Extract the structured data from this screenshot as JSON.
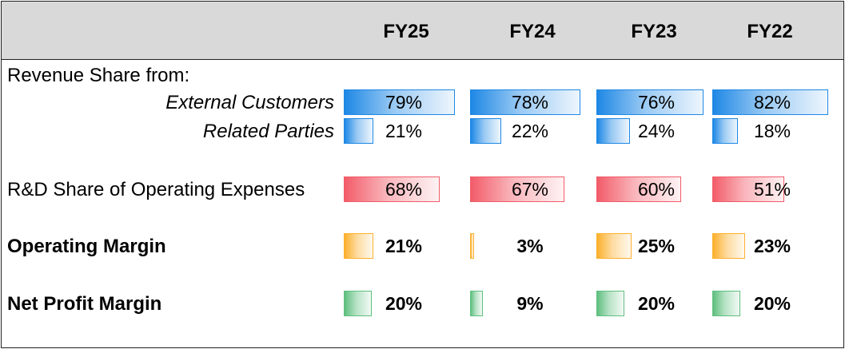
{
  "header": {
    "columns": [
      "FY25",
      "FY24",
      "FY23",
      "FY22"
    ]
  },
  "colors": {
    "blue": "#1e88e5",
    "red": "#f25c69",
    "orange": "#fbb02d",
    "green": "#5fbf7f"
  },
  "chart_data": {
    "type": "table",
    "categories": [
      "FY25",
      "FY24",
      "FY23",
      "FY22"
    ],
    "section_label": "Revenue Share from:",
    "series": [
      {
        "name": "External Customers",
        "values": [
          79,
          78,
          76,
          82
        ],
        "labels": [
          "79%",
          "78%",
          "76%",
          "82%"
        ],
        "color": "blue"
      },
      {
        "name": "Related Parties",
        "values": [
          21,
          22,
          24,
          18
        ],
        "labels": [
          "21%",
          "22%",
          "24%",
          "18%"
        ],
        "color": "blue"
      },
      {
        "name": "R&D Share of Operating Expenses",
        "values": [
          68,
          67,
          60,
          51
        ],
        "labels": [
          "68%",
          "67%",
          "60%",
          "51%"
        ],
        "color": "red"
      },
      {
        "name": "Operating Margin",
        "values": [
          21,
          3,
          25,
          23
        ],
        "labels": [
          "21%",
          "3%",
          "25%",
          "23%"
        ],
        "color": "orange"
      },
      {
        "name": "Net Profit Margin",
        "values": [
          20,
          9,
          20,
          20
        ],
        "labels": [
          "20%",
          "9%",
          "20%",
          "20%"
        ],
        "color": "green"
      }
    ]
  }
}
